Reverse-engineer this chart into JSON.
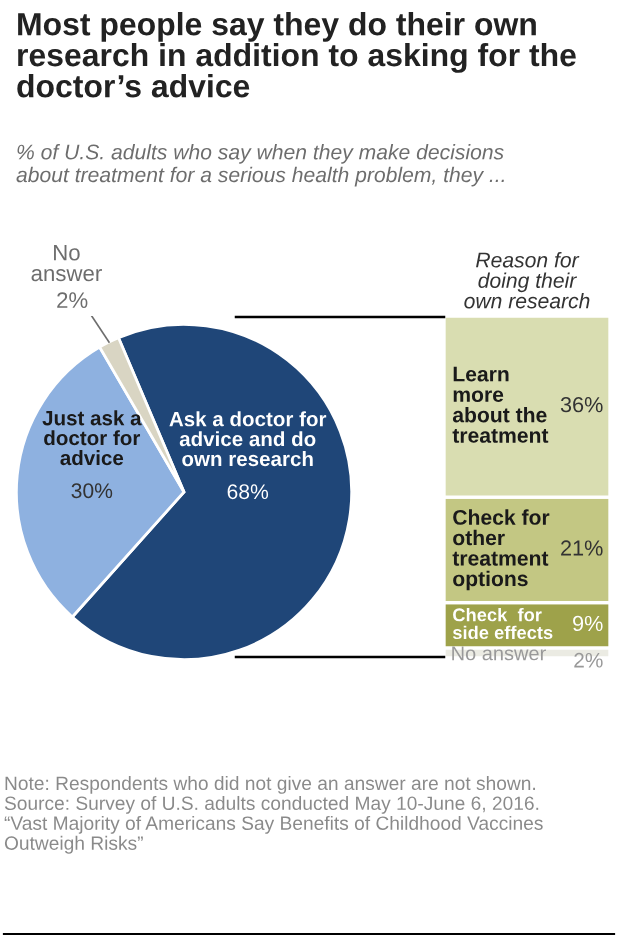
{
  "chart_data": [
    {
      "type": "pie",
      "title": "Most people say they do their own\nresearch in addition to asking for the\ndoctor’s advice",
      "subtitle": "% of U.S. adults who say when they make decisions\nabout treatment for a serious health problem, they ...",
      "categories": [
        "Ask a doctor for\nadvice and do\nown research",
        "Just ask a\ndoctor for\nadvice",
        "No\nanswer"
      ],
      "values": [
        68,
        30,
        2
      ],
      "value_labels": [
        "68%",
        "30%",
        "2%"
      ],
      "colors": [
        "#1f4678",
        "#8eb1e0",
        "#d9d5c3"
      ],
      "annotations": [
        "Note: Respondents who did not give an answer are not shown.\nSource: Survey of U.S. adults conducted May 10-June 6, 2016.\n“Vast Majority of Americans Say Benefits of Childhood Vaccines\nOutweigh Risks”"
      ]
    },
    {
      "type": "bar",
      "stacked": true,
      "title": "Reason for\ndoing their\nown research",
      "categories": [
        null
      ],
      "series": [
        {
          "name": "No answer",
          "color": "#ebebe3",
          "values": [
            2
          ],
          "value_labels": [
            "2%"
          ]
        },
        {
          "name": "Check  for\nside effects",
          "color": "#9ea24a",
          "values": [
            9
          ],
          "value_labels": [
            "9%"
          ]
        },
        {
          "name": "Check for\nother\ntreatment\noptions",
          "color": "#c3c783",
          "values": [
            21
          ],
          "value_labels": [
            "21%"
          ]
        },
        {
          "name": "Learn\nmore\nabout the\ntreatment",
          "color": "#d9ddb1",
          "values": [
            36
          ],
          "value_labels": [
            "36%"
          ]
        }
      ]
    }
  ]
}
